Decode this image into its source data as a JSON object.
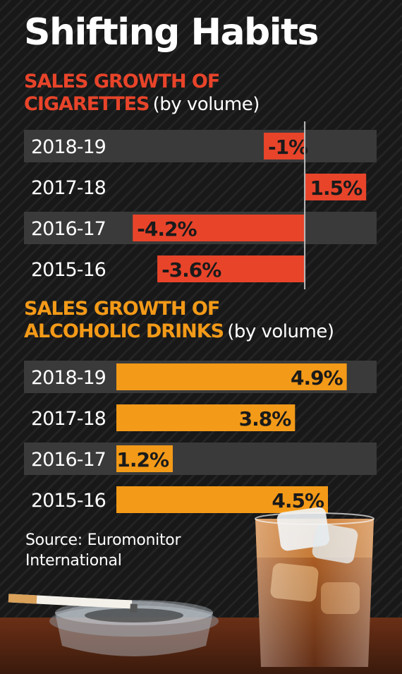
{
  "title": "Shifting Habits",
  "source": {
    "line1": "Source: Euromonitor",
    "line2": "International"
  },
  "chart_data": [
    {
      "type": "bar",
      "title_highlight_line1": "SALES GROWTH OF",
      "title_highlight_line2": "CIGARETTES",
      "title_note": "(by volume)",
      "categories": [
        "2018-19",
        "2017-18",
        "2016-17",
        "2015-16"
      ],
      "values": [
        -1,
        1.5,
        -4.2,
        -3.6
      ],
      "labels": [
        "-1%",
        "1.5%",
        "-4.2%",
        "-3.6%"
      ],
      "color": "#e8442a",
      "xlim": [
        -4.6,
        1.6
      ]
    },
    {
      "type": "bar",
      "title_highlight_line1": "SALES GROWTH OF",
      "title_highlight_line2": "ALCOHOLIC DRINKS",
      "title_note": "(by volume)",
      "categories": [
        "2018-19",
        "2017-18",
        "2016-17",
        "2015-16"
      ],
      "values": [
        4.9,
        3.8,
        1.2,
        4.5
      ],
      "labels": [
        "4.9%",
        "3.8%",
        "1.2%",
        "4.5%"
      ],
      "color": "#f39a18",
      "xlim": [
        0,
        5.4
      ]
    }
  ],
  "colors": {
    "cigarettes": "#e8442a",
    "alcohol": "#f39a18",
    "band": "#3a3a3a"
  }
}
